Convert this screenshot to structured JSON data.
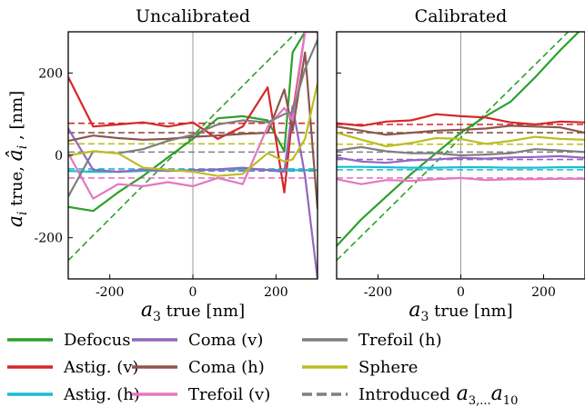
{
  "figure": {
    "ylabel_html": "a_i true, â_i , [nm]",
    "ylabel_parts": {
      "sym": "a",
      "sub": "i",
      "mid": " true, ",
      "sym2": "â",
      "sub2": "i",
      "end": " , [nm]"
    },
    "xlabel_parts": {
      "sym": "a",
      "sub": "3",
      "end": " true [nm]"
    }
  },
  "legend": {
    "entries": [
      {
        "label": "Defocus",
        "color": "#2ca02c",
        "style": "solid"
      },
      {
        "label": "Astig. (v)",
        "color": "#d62728",
        "style": "solid"
      },
      {
        "label": "Astig. (h)",
        "color": "#17becf",
        "style": "solid"
      },
      {
        "label": "Coma (v)",
        "color": "#9467bd",
        "style": "solid"
      },
      {
        "label": "Coma (h)",
        "color": "#8c564b",
        "style": "solid"
      },
      {
        "label": "Trefoil (v)",
        "color": "#e377c2",
        "style": "solid"
      },
      {
        "label": "Trefoil (h)",
        "color": "#7f7f7f",
        "style": "solid"
      },
      {
        "label": "Sphere",
        "color": "#bcbd22",
        "style": "solid"
      },
      {
        "label": "Introduced",
        "label_math": "a",
        "label_math_sub": "3,...",
        "label_math_tail": "a",
        "label_math_tail_sub": "10",
        "color": "#7f7f7f",
        "style": "dashed"
      }
    ],
    "placement": "bottom"
  },
  "chart_data": [
    {
      "type": "line",
      "title": "Uncalibrated",
      "xlabel": "a3 true [nm]",
      "ylabel": "ai true, âi , [nm]",
      "xlim": [
        -300,
        300
      ],
      "ylim": [
        -300,
        300
      ],
      "xticks": [
        -200,
        0,
        200
      ],
      "yticks": [
        -200,
        0,
        200
      ],
      "show_ylabels": true,
      "x": [
        -300,
        -240,
        -180,
        -120,
        -60,
        0,
        60,
        120,
        180,
        220,
        240,
        270,
        300
      ],
      "series": [
        {
          "name": "Defocus",
          "color": "#2ca02c",
          "values": [
            -125,
            -135,
            -90,
            -50,
            -5,
            40,
            90,
            95,
            85,
            10,
            250,
            300,
            300
          ]
        },
        {
          "name": "Astig. (v)",
          "color": "#d62728",
          "values": [
            190,
            70,
            75,
            80,
            70,
            80,
            40,
            70,
            165,
            -90,
            100,
            300,
            300
          ]
        },
        {
          "name": "Astig. (h)",
          "color": "#17becf",
          "values": [
            -38,
            -40,
            -40,
            -38,
            -37,
            -36,
            -35,
            -34,
            -35,
            -36,
            -36,
            -36,
            -36
          ]
        },
        {
          "name": "Coma (v)",
          "color": "#9467bd",
          "values": [
            65,
            -35,
            -40,
            -35,
            -38,
            -36,
            -34,
            -30,
            -36,
            -40,
            120,
            -50,
            -300
          ]
        },
        {
          "name": "Coma (h)",
          "color": "#8c564b",
          "values": [
            35,
            48,
            42,
            38,
            40,
            45,
            48,
            52,
            55,
            160,
            60,
            250,
            -130
          ]
        },
        {
          "name": "Trefoil (v)",
          "color": "#e377c2",
          "values": [
            5,
            -105,
            -70,
            -75,
            -65,
            -75,
            -55,
            -70,
            70,
            115,
            85,
            300,
            300
          ]
        },
        {
          "name": "Trefoil (h)",
          "color": "#7f7f7f",
          "values": [
            -100,
            10,
            5,
            15,
            35,
            50,
            75,
            85,
            80,
            100,
            105,
            210,
            280
          ]
        },
        {
          "name": "Sphere",
          "color": "#bcbd22",
          "values": [
            0,
            10,
            5,
            -30,
            -35,
            -40,
            -50,
            -45,
            5,
            -15,
            -10,
            40,
            175
          ]
        }
      ],
      "introduced": [
        {
          "name": "Defocus",
          "color": "#2ca02c",
          "from": [
            -300,
            -255
          ],
          "to": [
            250,
            300
          ]
        },
        {
          "name": "Astig. (v)",
          "color": "#d62728",
          "value": 78
        },
        {
          "name": "Coma (h)",
          "color": "#8c564b",
          "value": 55
        },
        {
          "name": "Sphere",
          "color": "#bcbd22",
          "value": 28
        },
        {
          "name": "Trefoil (h)",
          "color": "#7f7f7f",
          "value": 8
        },
        {
          "name": "Astig. (h)",
          "color": "#17becf",
          "value": -33
        },
        {
          "name": "Coma (v)",
          "color": "#9467bd",
          "value": -38
        },
        {
          "name": "Trefoil (v)",
          "color": "#e377c2",
          "value": -55
        }
      ]
    },
    {
      "type": "line",
      "title": "Calibrated",
      "xlabel": "a3 true [nm]",
      "ylabel": "",
      "xlim": [
        -300,
        300
      ],
      "ylim": [
        -300,
        300
      ],
      "xticks": [
        -200,
        0,
        200
      ],
      "yticks": [
        -200,
        0,
        200
      ],
      "show_ylabels": false,
      "x": [
        -300,
        -240,
        -180,
        -120,
        -60,
        0,
        60,
        120,
        180,
        240,
        300
      ],
      "series": [
        {
          "name": "Defocus",
          "color": "#2ca02c",
          "values": [
            -220,
            -155,
            -100,
            -45,
            5,
            55,
            95,
            130,
            190,
            255,
            315
          ]
        },
        {
          "name": "Astig. (v)",
          "color": "#d62728",
          "values": [
            78,
            72,
            82,
            85,
            100,
            95,
            92,
            80,
            75,
            82,
            80
          ]
        },
        {
          "name": "Astig. (h)",
          "color": "#17becf",
          "values": [
            -28,
            -28,
            -29,
            -30,
            -30,
            -29,
            -29,
            -30,
            -30,
            -29,
            -29
          ]
        },
        {
          "name": "Coma (v)",
          "color": "#9467bd",
          "values": [
            -5,
            -15,
            -18,
            -12,
            -10,
            -6,
            -8,
            -5,
            -4,
            -2,
            -6
          ]
        },
        {
          "name": "Coma (h)",
          "color": "#8c564b",
          "values": [
            70,
            60,
            50,
            55,
            60,
            62,
            65,
            72,
            70,
            68,
            55
          ]
        },
        {
          "name": "Trefoil (v)",
          "color": "#e377c2",
          "values": [
            -58,
            -70,
            -60,
            -62,
            -58,
            -55,
            -60,
            -58,
            -58,
            -57,
            -57
          ]
        },
        {
          "name": "Trefoil (h)",
          "color": "#7f7f7f",
          "values": [
            12,
            20,
            10,
            5,
            5,
            0,
            2,
            5,
            15,
            12,
            8
          ]
        },
        {
          "name": "Sphere",
          "color": "#bcbd22",
          "values": [
            55,
            38,
            22,
            30,
            42,
            40,
            28,
            35,
            45,
            40,
            38
          ]
        }
      ],
      "introduced": [
        {
          "name": "Defocus",
          "color": "#2ca02c",
          "from": [
            -300,
            -255
          ],
          "to": [
            300,
            340
          ]
        },
        {
          "name": "Astig. (v)",
          "color": "#d62728",
          "value": 75
        },
        {
          "name": "Coma (h)",
          "color": "#8c564b",
          "value": 55
        },
        {
          "name": "Sphere",
          "color": "#bcbd22",
          "value": 27
        },
        {
          "name": "Trefoil (h)",
          "color": "#7f7f7f",
          "value": 8
        },
        {
          "name": "Astig. (h)",
          "color": "#17becf",
          "value": -35
        },
        {
          "name": "Coma (v)",
          "color": "#9467bd",
          "value": -10
        },
        {
          "name": "Trefoil (v)",
          "color": "#e377c2",
          "value": -55
        }
      ]
    }
  ]
}
